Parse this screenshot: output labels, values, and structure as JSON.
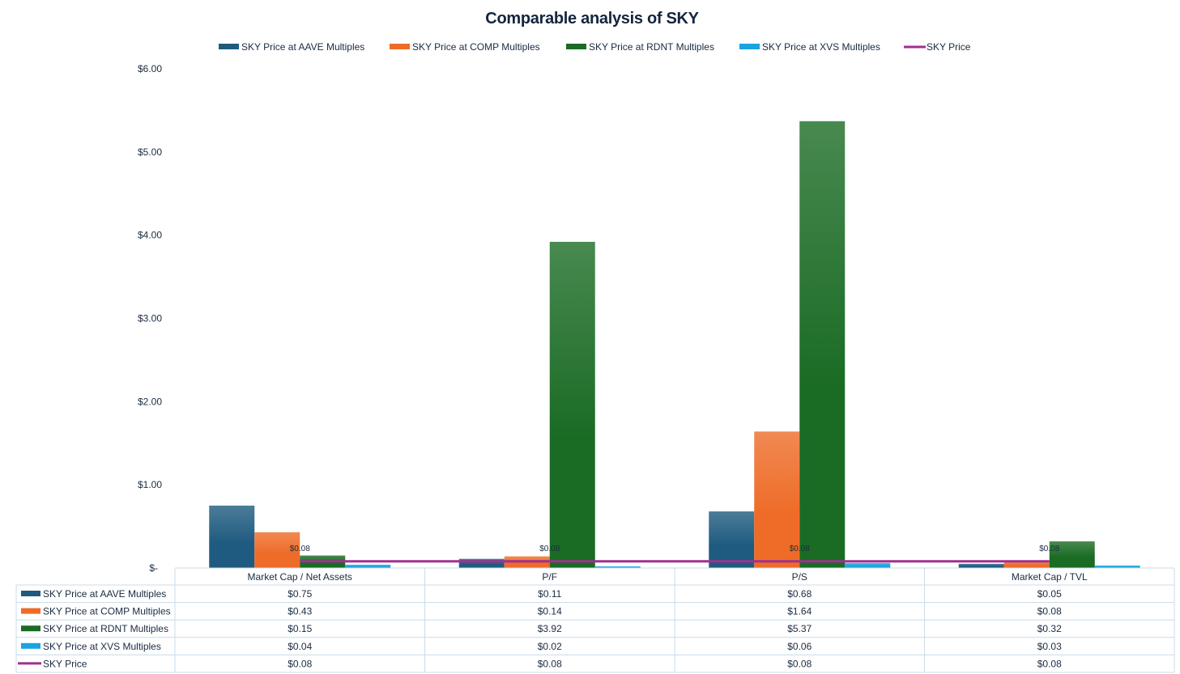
{
  "chart_data": {
    "type": "bar",
    "title": "Comparable analysis of SKY",
    "xlabel": "",
    "ylabel": "",
    "ylim": [
      0,
      6
    ],
    "y_ticks": [
      0,
      1,
      2,
      3,
      4,
      5,
      6
    ],
    "y_tick_labels": [
      "$-",
      "$1.00",
      "$2.00",
      "$3.00",
      "$4.00",
      "$5.00",
      "$6.00"
    ],
    "grid": false,
    "legend_position": "top",
    "categories": [
      "Market Cap / Net Assets",
      "P/F",
      "P/S",
      "Market Cap / TVL"
    ],
    "series": [
      {
        "name": "SKY Price at AAVE Multiples",
        "kind": "bar",
        "color": "#1f5b80",
        "values": [
          0.75,
          0.11,
          0.68,
          0.05
        ],
        "display": [
          "$0.75",
          "$0.11",
          "$0.68",
          "$0.05"
        ]
      },
      {
        "name": "SKY Price at COMP Multiples",
        "kind": "bar",
        "color": "#ee6c28",
        "values": [
          0.43,
          0.14,
          1.64,
          0.08
        ],
        "display": [
          "$0.43",
          "$0.14",
          "$1.64",
          "$0.08"
        ]
      },
      {
        "name": "SKY Price at RDNT Multiples",
        "kind": "bar",
        "color": "#1a6b24",
        "values": [
          0.15,
          3.92,
          5.37,
          0.32
        ],
        "display": [
          "$0.15",
          "$3.92",
          "$5.37",
          "$0.32"
        ]
      },
      {
        "name": "SKY Price at XVS Multiples",
        "kind": "bar",
        "color": "#1ba3e0",
        "values": [
          0.04,
          0.02,
          0.06,
          0.03
        ],
        "display": [
          "$0.04",
          "$0.02",
          "$0.06",
          "$0.03"
        ]
      },
      {
        "name": "SKY Price",
        "kind": "line",
        "color": "#a0308f",
        "values": [
          0.08,
          0.08,
          0.08,
          0.08
        ],
        "display": [
          "$0.08",
          "$0.08",
          "$0.08",
          "$0.08"
        ],
        "data_labels": [
          "$0.08",
          "$0.08",
          "$0.08",
          "$0.08"
        ]
      }
    ],
    "data_table": true
  }
}
